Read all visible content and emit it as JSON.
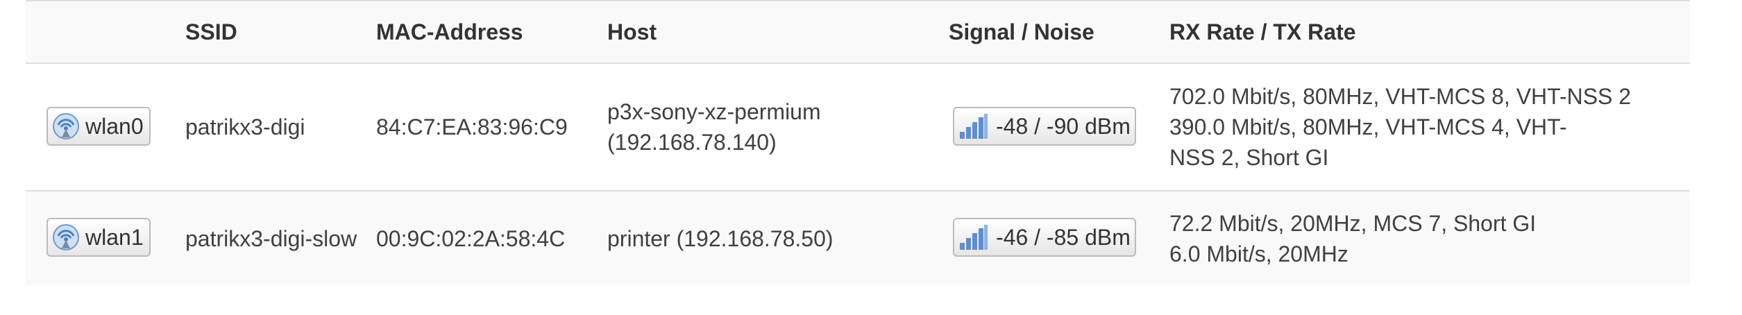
{
  "table": {
    "headers": {
      "iface": "",
      "ssid": "SSID",
      "mac": "MAC-Address",
      "host": "Host",
      "signal": "Signal / Noise",
      "rate": "RX Rate / TX Rate"
    },
    "rows": [
      {
        "iface": "wlan0",
        "iface_icon": "wifi-antenna-icon",
        "ssid": "patrikx3-digi",
        "mac": "84:C7:EA:83:96:C9",
        "host": "p3x-sony-xz-permium (192.168.78.140)",
        "signal": "-48 / -90 dBm",
        "signal_icon": "signal-bars-icon",
        "rx_rate": "702.0 Mbit/s, 80MHz, VHT-MCS 8, VHT-NSS 2",
        "tx_rate": "390.0 Mbit/s, 80MHz, VHT-MCS 4, VHT-NSS 2, Short GI"
      },
      {
        "iface": "wlan1",
        "iface_icon": "wifi-antenna-icon",
        "ssid": "patrikx3-digi-slow",
        "mac": "00:9C:02:2A:58:4C",
        "host": "printer (192.168.78.50)",
        "signal": "-46 / -85 dBm",
        "signal_icon": "signal-bars-icon",
        "rx_rate": "72.2 Mbit/s, 20MHz, MCS 7, Short GI",
        "tx_rate": "6.0 Mbit/s, 20MHz"
      }
    ]
  },
  "colors": {
    "header_bg": "#f9f9f9",
    "border": "#dddddd",
    "icon_blue": "#5b8fd0"
  }
}
